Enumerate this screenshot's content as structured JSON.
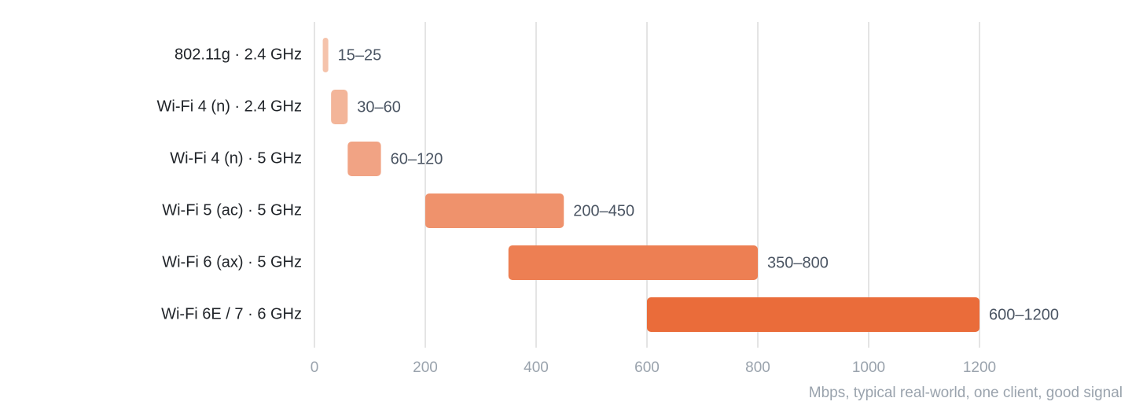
{
  "chart_data": {
    "type": "range",
    "categories": [
      "802.11g · 2.4 GHz",
      "Wi-Fi 4 (n) · 2.4 GHz",
      "Wi-Fi 4 (n) · 5 GHz",
      "Wi-Fi 5 (ac) · 5 GHz",
      "Wi-Fi 6 (ax) · 5 GHz",
      "Wi-Fi 6E / 7 · 6 GHz"
    ],
    "low": [
      15,
      30,
      60,
      200,
      350,
      600
    ],
    "high": [
      25,
      60,
      120,
      450,
      800,
      1200
    ],
    "value_labels": [
      "15–25",
      "30–60",
      "60–120",
      "200–450",
      "350–800",
      "600–1200"
    ],
    "colors": [
      "#f5c3ab",
      "#f3b599",
      "#f1a384",
      "#ef926c",
      "#ed7f53",
      "#ea6c3a"
    ],
    "xlim": [
      0,
      1300
    ],
    "xticks": [
      0,
      200,
      400,
      600,
      800,
      1000,
      1200
    ],
    "xlabel": "Mbps, typical real-world, one client, good signal",
    "grid": true
  }
}
